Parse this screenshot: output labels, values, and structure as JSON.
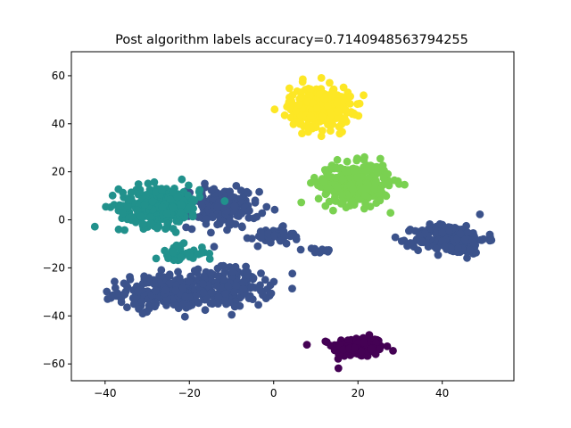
{
  "chart_data": {
    "type": "scatter",
    "title": "Post algorithm labels accuracy=0.7140948563794255",
    "xlabel": "",
    "ylabel": "",
    "xlim": [
      -48,
      57
    ],
    "ylim": [
      -67,
      70
    ],
    "xticks": [
      -40,
      -20,
      0,
      20,
      40
    ],
    "yticks": [
      -60,
      -40,
      -20,
      0,
      20,
      40,
      60
    ],
    "xtick_labels": [
      "−40",
      "−20",
      "0",
      "20",
      "40"
    ],
    "ytick_labels": [
      "−60",
      "−40",
      "−20",
      "0",
      "20",
      "40",
      "60"
    ],
    "grid": false,
    "legend": "none",
    "clusters": [
      {
        "label": 0,
        "color": "#440154",
        "center": [
          20,
          -53
        ],
        "spread": [
          5,
          3.5
        ],
        "count": 230
      },
      {
        "label": 1,
        "color": "#3b528b",
        "center": [
          -26,
          -30
        ],
        "spread": [
          9,
          6
        ],
        "count": 220
      },
      {
        "label": 1,
        "color": "#3b528b",
        "center": [
          -10,
          -28
        ],
        "spread": [
          8,
          7
        ],
        "count": 160
      },
      {
        "label": 1,
        "color": "#3b528b",
        "center": [
          -12,
          5
        ],
        "spread": [
          7,
          7
        ],
        "count": 170
      },
      {
        "label": 1,
        "color": "#3b528b",
        "center": [
          0,
          -7
        ],
        "spread": [
          4,
          3
        ],
        "count": 40
      },
      {
        "label": 1,
        "color": "#3b528b",
        "center": [
          11,
          -13
        ],
        "spread": [
          3,
          1
        ],
        "count": 12
      },
      {
        "label": 1,
        "color": "#3b528b",
        "center": [
          42,
          -8
        ],
        "spread": [
          7,
          5
        ],
        "count": 230
      },
      {
        "label": 2,
        "color": "#21918c",
        "center": [
          -27,
          6
        ],
        "spread": [
          8,
          7
        ],
        "count": 260
      },
      {
        "label": 2,
        "color": "#21918c",
        "center": [
          -22,
          -14
        ],
        "spread": [
          5,
          3
        ],
        "count": 40
      },
      {
        "label": 3,
        "color": "#7ad151",
        "center": [
          19,
          15
        ],
        "spread": [
          7,
          7
        ],
        "count": 320
      },
      {
        "label": 4,
        "color": "#fde725",
        "center": [
          11,
          47
        ],
        "spread": [
          6,
          7
        ],
        "count": 320
      }
    ]
  }
}
